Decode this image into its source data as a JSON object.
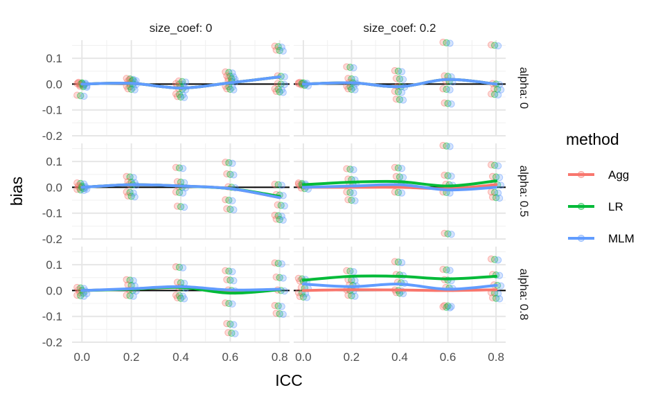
{
  "chart_data": {
    "type": "scatter",
    "title": "",
    "xlabel": "ICC",
    "ylabel": "bias",
    "xlim": [
      -0.04,
      0.84
    ],
    "ylim": [
      -0.2,
      0.17
    ],
    "x_ticks": [
      0.0,
      0.2,
      0.4,
      0.6,
      0.8
    ],
    "x_tick_labels": [
      "0.0",
      "0.2",
      "0.4",
      "0.6",
      "0.8"
    ],
    "y_ticks": [
      -0.2,
      -0.1,
      0.0,
      0.1
    ],
    "y_tick_labels": [
      "-0.2",
      "-0.1",
      "0.0",
      "0.1"
    ],
    "grid": true,
    "reference_line_y": 0,
    "legend": {
      "title": "method",
      "placement": "right",
      "entries": [
        {
          "name": "Agg",
          "color": "#F8766D"
        },
        {
          "name": "LR",
          "color": "#00BA38"
        },
        {
          "name": "MLM",
          "color": "#619CFF"
        }
      ]
    },
    "col_facets": [
      "size_coef: 0",
      "size_coef: 0.2"
    ],
    "row_facets": [
      "alpha: 0",
      "alpha: 0.5",
      "alpha: 0.8"
    ],
    "panels": [
      {
        "row": 0,
        "col": 0,
        "points": [
          {
            "x": 0.0,
            "ys": [
              0.0,
              0.005,
              -0.005,
              -0.045,
              0.002,
              -0.01
            ]
          },
          {
            "x": 0.2,
            "ys": [
              0.02,
              0.01,
              0.0,
              -0.01,
              -0.02,
              0.015
            ]
          },
          {
            "x": 0.4,
            "ys": [
              0.0,
              -0.01,
              -0.02,
              -0.04,
              -0.05,
              0.01
            ]
          },
          {
            "x": 0.6,
            "ys": [
              0.045,
              0.03,
              0.01,
              -0.01,
              -0.02,
              0.02
            ]
          },
          {
            "x": 0.8,
            "ys": [
              0.145,
              0.13,
              0.03,
              -0.02,
              -0.03,
              0.0
            ]
          }
        ],
        "curves": [
          {
            "method": "Agg",
            "y": [
              0.0,
              0.003,
              -0.015,
              0.005,
              0.028
            ]
          },
          {
            "method": "LR",
            "y": [
              0.0,
              0.003,
              -0.015,
              0.005,
              0.028
            ]
          },
          {
            "method": "MLM",
            "y": [
              0.0,
              0.003,
              -0.015,
              0.005,
              0.028
            ]
          }
        ]
      },
      {
        "row": 0,
        "col": 1,
        "points": [
          {
            "x": 0.0,
            "ys": [
              0.0,
              0.005,
              -0.005,
              0.003
            ]
          },
          {
            "x": 0.2,
            "ys": [
              0.065,
              0.02,
              0.005,
              -0.01,
              -0.02
            ]
          },
          {
            "x": 0.4,
            "ys": [
              0.05,
              0.02,
              -0.01,
              -0.03,
              -0.06
            ]
          },
          {
            "x": 0.6,
            "ys": [
              0.16,
              0.03,
              0.01,
              -0.02,
              -0.075
            ]
          },
          {
            "x": 0.8,
            "ys": [
              0.15,
              0.0,
              -0.02,
              -0.04
            ]
          }
        ],
        "curves": [
          {
            "method": "Agg",
            "y": [
              0.0,
              0.005,
              -0.01,
              0.018,
              0.0
            ]
          },
          {
            "method": "LR",
            "y": [
              0.0,
              0.005,
              -0.01,
              0.018,
              0.0
            ]
          },
          {
            "method": "MLM",
            "y": [
              0.0,
              0.005,
              -0.01,
              0.018,
              0.0
            ]
          }
        ]
      },
      {
        "row": 1,
        "col": 0,
        "points": [
          {
            "x": 0.0,
            "ys": [
              0.015,
              0.005,
              -0.005,
              -0.01,
              0.0
            ]
          },
          {
            "x": 0.2,
            "ys": [
              0.04,
              0.02,
              0.01,
              -0.02,
              -0.035
            ]
          },
          {
            "x": 0.4,
            "ys": [
              0.075,
              0.02,
              0.0,
              -0.02,
              -0.075
            ]
          },
          {
            "x": 0.6,
            "ys": [
              0.095,
              0.05,
              0.0,
              -0.05,
              -0.085
            ]
          },
          {
            "x": 0.8,
            "ys": [
              0.01,
              -0.03,
              -0.07,
              -0.11,
              -0.125
            ]
          }
        ],
        "curves": [
          {
            "method": "Agg",
            "y": [
              0.0,
              0.01,
              0.005,
              -0.005,
              -0.04
            ]
          },
          {
            "method": "LR",
            "y": [
              0.0,
              0.01,
              0.005,
              -0.005,
              -0.035
            ]
          },
          {
            "method": "MLM",
            "y": [
              0.0,
              0.01,
              0.005,
              -0.005,
              -0.04
            ]
          }
        ]
      },
      {
        "row": 1,
        "col": 1,
        "points": [
          {
            "x": 0.0,
            "ys": [
              0.015,
              0.005,
              -0.005,
              0.01
            ]
          },
          {
            "x": 0.2,
            "ys": [
              0.07,
              0.03,
              0.01,
              -0.02,
              -0.05
            ]
          },
          {
            "x": 0.4,
            "ys": [
              0.075,
              0.04,
              0.01,
              -0.02
            ]
          },
          {
            "x": 0.6,
            "ys": [
              0.16,
              0.045,
              0.01,
              -0.02,
              -0.18
            ]
          },
          {
            "x": 0.8,
            "ys": [
              0.085,
              0.04,
              0.01,
              -0.02,
              -0.04
            ]
          }
        ],
        "curves": [
          {
            "method": "Agg",
            "y": [
              0.0,
              0.0,
              0.0,
              -0.005,
              0.01
            ]
          },
          {
            "method": "LR",
            "y": [
              0.01,
              0.02,
              0.022,
              0.005,
              0.025
            ]
          },
          {
            "method": "MLM",
            "y": [
              0.0,
              0.005,
              0.01,
              -0.01,
              0.0
            ]
          }
        ]
      },
      {
        "row": 2,
        "col": 0,
        "points": [
          {
            "x": 0.0,
            "ys": [
              0.01,
              0.0,
              -0.01,
              -0.02
            ]
          },
          {
            "x": 0.2,
            "ys": [
              0.04,
              0.02,
              0.0,
              -0.02
            ]
          },
          {
            "x": 0.4,
            "ys": [
              0.09,
              0.03,
              0.01,
              -0.02,
              -0.03
            ]
          },
          {
            "x": 0.6,
            "ys": [
              0.075,
              0.04,
              0.0,
              -0.05,
              -0.13,
              -0.165
            ]
          },
          {
            "x": 0.8,
            "ys": [
              0.105,
              0.05,
              0.0,
              -0.06,
              -0.09
            ]
          }
        ],
        "curves": [
          {
            "method": "Agg",
            "y": [
              0.0,
              0.005,
              0.012,
              0.0,
              0.003
            ]
          },
          {
            "method": "LR",
            "y": [
              0.0,
              0.005,
              0.012,
              -0.01,
              0.003
            ]
          },
          {
            "method": "MLM",
            "y": [
              0.0,
              0.007,
              0.015,
              0.002,
              0.005
            ]
          }
        ]
      },
      {
        "row": 2,
        "col": 1,
        "points": [
          {
            "x": 0.0,
            "ys": [
              0.045,
              0.035,
              0.01,
              -0.01,
              -0.025
            ]
          },
          {
            "x": 0.2,
            "ys": [
              0.075,
              0.04,
              0.02,
              0.0,
              -0.02
            ]
          },
          {
            "x": 0.4,
            "ys": [
              0.11,
              0.06,
              0.03,
              0.0,
              -0.01
            ]
          },
          {
            "x": 0.6,
            "ys": [
              0.08,
              0.04,
              0.01,
              -0.065,
              -0.06
            ]
          },
          {
            "x": 0.8,
            "ys": [
              0.12,
              0.06,
              0.02,
              -0.01,
              -0.03
            ]
          }
        ],
        "curves": [
          {
            "method": "Agg",
            "y": [
              0.0,
              0.003,
              0.002,
              0.0,
              0.003
            ]
          },
          {
            "method": "LR",
            "y": [
              0.04,
              0.055,
              0.055,
              0.045,
              0.055
            ]
          },
          {
            "method": "MLM",
            "y": [
              0.025,
              0.015,
              0.025,
              0.005,
              0.02
            ]
          }
        ]
      }
    ]
  }
}
